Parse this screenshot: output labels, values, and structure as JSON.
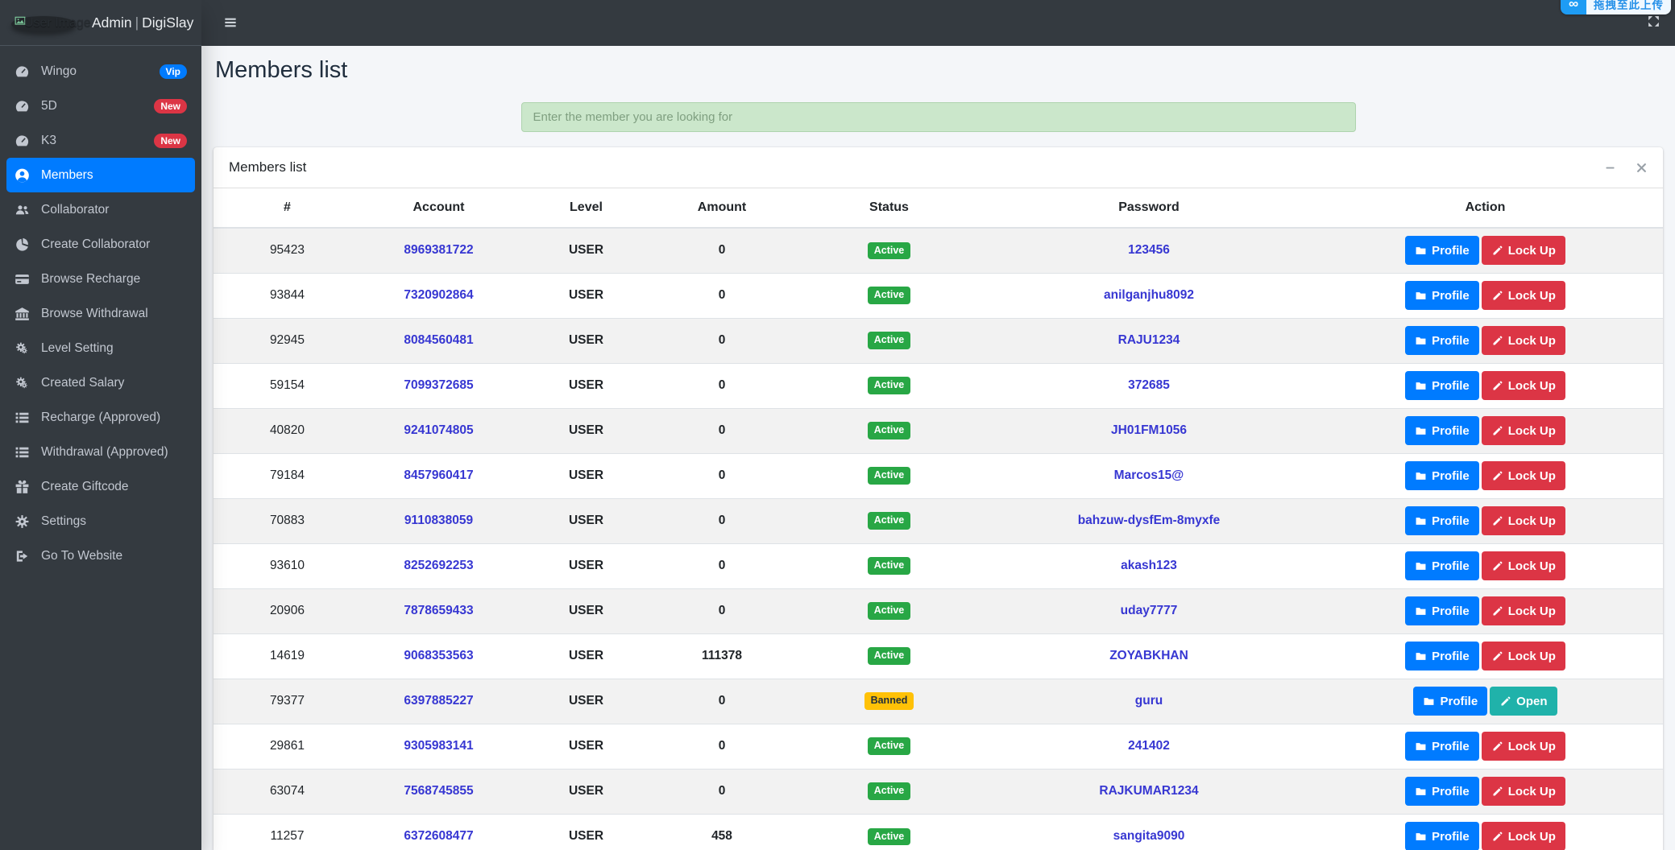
{
  "brand": {
    "image_alt": "User Image",
    "title_left": "Admin",
    "title_sep": "|",
    "title_right": "DigiSlay"
  },
  "topbar": {
    "upload_badge_text": "拖拽至此上传",
    "upload_badge_logo": "infinity",
    "upload_logo_glyph": "∞"
  },
  "page": {
    "title": "Members list"
  },
  "search": {
    "placeholder": "Enter the member you are looking for",
    "value": ""
  },
  "card": {
    "title": "Members list"
  },
  "sidebar": {
    "items": [
      {
        "label": "Wingo",
        "icon": "gauge",
        "badge": "Vip",
        "badge_color": "#007bff",
        "active": false
      },
      {
        "label": "5D",
        "icon": "gauge",
        "badge": "New",
        "badge_color": "#dc3545",
        "active": false
      },
      {
        "label": "K3",
        "icon": "gauge",
        "badge": "New",
        "badge_color": "#dc3545",
        "active": false
      },
      {
        "label": "Members",
        "icon": "user-circle",
        "badge": null,
        "active": true
      },
      {
        "label": "Collaborator",
        "icon": "users",
        "badge": null,
        "active": false
      },
      {
        "label": "Create Collaborator",
        "icon": "pie-chart",
        "badge": null,
        "active": false
      },
      {
        "label": "Browse Recharge",
        "icon": "credit-card",
        "badge": null,
        "active": false
      },
      {
        "label": "Browse Withdrawal",
        "icon": "bank",
        "badge": null,
        "active": false
      },
      {
        "label": "Level Setting",
        "icon": "cogs",
        "badge": null,
        "active": false
      },
      {
        "label": "Created Salary",
        "icon": "cogs",
        "badge": null,
        "active": false
      },
      {
        "label": "Recharge (Approved)",
        "icon": "list",
        "badge": null,
        "active": false
      },
      {
        "label": "Withdrawal (Approved)",
        "icon": "list",
        "badge": null,
        "active": false
      },
      {
        "label": "Create Giftcode",
        "icon": "gift",
        "badge": null,
        "active": false
      },
      {
        "label": "Settings",
        "icon": "cog",
        "badge": null,
        "active": false
      },
      {
        "label": "Go To Website",
        "icon": "sign-out",
        "badge": null,
        "active": false
      }
    ]
  },
  "table": {
    "headers": [
      "#",
      "Account",
      "Level",
      "Amount",
      "Status",
      "Password",
      "Action"
    ],
    "rows": [
      {
        "id": "95423",
        "account": "8969381722",
        "level": "USER",
        "amount": "0",
        "status": "Active",
        "password": "123456",
        "actions": [
          {
            "label": "Profile",
            "icon": "folder",
            "variant": "primary"
          },
          {
            "label": "Lock Up",
            "icon": "pencil",
            "variant": "danger"
          }
        ]
      },
      {
        "id": "93844",
        "account": "7320902864",
        "level": "USER",
        "amount": "0",
        "status": "Active",
        "password": "anilganjhu8092",
        "actions": [
          {
            "label": "Profile",
            "icon": "folder",
            "variant": "primary"
          },
          {
            "label": "Lock Up",
            "icon": "pencil",
            "variant": "danger"
          }
        ]
      },
      {
        "id": "92945",
        "account": "8084560481",
        "level": "USER",
        "amount": "0",
        "status": "Active",
        "password": "RAJU1234",
        "actions": [
          {
            "label": "Profile",
            "icon": "folder",
            "variant": "primary"
          },
          {
            "label": "Lock Up",
            "icon": "pencil",
            "variant": "danger"
          }
        ]
      },
      {
        "id": "59154",
        "account": "7099372685",
        "level": "USER",
        "amount": "0",
        "status": "Active",
        "password": "372685",
        "actions": [
          {
            "label": "Profile",
            "icon": "folder",
            "variant": "primary"
          },
          {
            "label": "Lock Up",
            "icon": "pencil",
            "variant": "danger"
          }
        ]
      },
      {
        "id": "40820",
        "account": "9241074805",
        "level": "USER",
        "amount": "0",
        "status": "Active",
        "password": "JH01FM1056",
        "actions": [
          {
            "label": "Profile",
            "icon": "folder",
            "variant": "primary"
          },
          {
            "label": "Lock Up",
            "icon": "pencil",
            "variant": "danger"
          }
        ]
      },
      {
        "id": "79184",
        "account": "8457960417",
        "level": "USER",
        "amount": "0",
        "status": "Active",
        "password": "Marcos15@",
        "actions": [
          {
            "label": "Profile",
            "icon": "folder",
            "variant": "primary"
          },
          {
            "label": "Lock Up",
            "icon": "pencil",
            "variant": "danger"
          }
        ]
      },
      {
        "id": "70883",
        "account": "9110838059",
        "level": "USER",
        "amount": "0",
        "status": "Active",
        "password": "bahzuw-dysfEm-8myxfe",
        "actions": [
          {
            "label": "Profile",
            "icon": "folder",
            "variant": "primary"
          },
          {
            "label": "Lock Up",
            "icon": "pencil",
            "variant": "danger"
          }
        ]
      },
      {
        "id": "93610",
        "account": "8252692253",
        "level": "USER",
        "amount": "0",
        "status": "Active",
        "password": "akash123",
        "actions": [
          {
            "label": "Profile",
            "icon": "folder",
            "variant": "primary"
          },
          {
            "label": "Lock Up",
            "icon": "pencil",
            "variant": "danger"
          }
        ]
      },
      {
        "id": "20906",
        "account": "7878659433",
        "level": "USER",
        "amount": "0",
        "status": "Active",
        "password": "uday7777",
        "actions": [
          {
            "label": "Profile",
            "icon": "folder",
            "variant": "primary"
          },
          {
            "label": "Lock Up",
            "icon": "pencil",
            "variant": "danger"
          }
        ]
      },
      {
        "id": "14619",
        "account": "9068353563",
        "level": "USER",
        "amount": "111378",
        "status": "Active",
        "password": "ZOYABKHAN",
        "actions": [
          {
            "label": "Profile",
            "icon": "folder",
            "variant": "primary"
          },
          {
            "label": "Lock Up",
            "icon": "pencil",
            "variant": "danger"
          }
        ]
      },
      {
        "id": "79377",
        "account": "6397885227",
        "level": "USER",
        "amount": "0",
        "status": "Banned",
        "password": "guru",
        "actions": [
          {
            "label": "Profile",
            "icon": "folder",
            "variant": "primary"
          },
          {
            "label": "Open",
            "icon": "pencil",
            "variant": "teal"
          }
        ]
      },
      {
        "id": "29861",
        "account": "9305983141",
        "level": "USER",
        "amount": "0",
        "status": "Active",
        "password": "241402",
        "actions": [
          {
            "label": "Profile",
            "icon": "folder",
            "variant": "primary"
          },
          {
            "label": "Lock Up",
            "icon": "pencil",
            "variant": "danger"
          }
        ]
      },
      {
        "id": "63074",
        "account": "7568745855",
        "level": "USER",
        "amount": "0",
        "status": "Active",
        "password": "RAJKUMAR1234",
        "actions": [
          {
            "label": "Profile",
            "icon": "folder",
            "variant": "primary"
          },
          {
            "label": "Lock Up",
            "icon": "pencil",
            "variant": "danger"
          }
        ]
      },
      {
        "id": "11257",
        "account": "6372608477",
        "level": "USER",
        "amount": "458",
        "status": "Active",
        "password": "sangita9090",
        "actions": [
          {
            "label": "Profile",
            "icon": "folder",
            "variant": "primary"
          },
          {
            "label": "Lock Up",
            "icon": "pencil",
            "variant": "danger"
          }
        ]
      }
    ],
    "status_colors": {
      "Active": "#28a745",
      "Banned": "#ffc107"
    }
  },
  "colors": {
    "sidebar_bg": "#343a40",
    "navbar_bg": "#343a40",
    "content_bg": "#f4f6f9",
    "active_item": "#007bff",
    "link": "#3737d2",
    "search_bg": "#cbe7cb",
    "btn_primary": "#007bff",
    "btn_danger": "#dc3545",
    "btn_teal": "#20b2aa",
    "badge_success": "#28a745",
    "badge_warning": "#ffc107",
    "upload_badge_blue": "#1e9cf4"
  }
}
